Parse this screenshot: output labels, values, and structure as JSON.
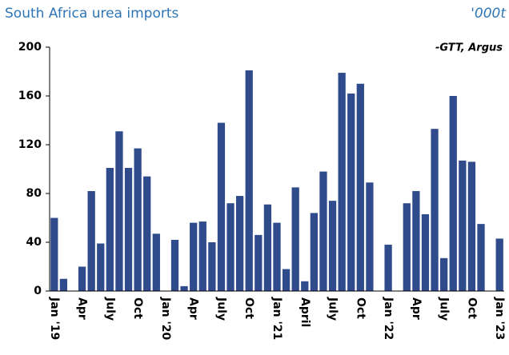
{
  "chart_data": {
    "type": "bar",
    "title": "South Africa urea imports",
    "unit": "'000t",
    "source": "-GTT, Argus",
    "categories": [
      "Jan '19",
      null,
      null,
      "Apr",
      null,
      null,
      "July",
      null,
      null,
      "Oct",
      null,
      null,
      "Jan '20",
      null,
      null,
      "Apr",
      null,
      null,
      "July",
      null,
      null,
      "Oct",
      null,
      null,
      "Jan '21",
      null,
      null,
      "April",
      null,
      null,
      "July",
      null,
      null,
      "Oct",
      null,
      null,
      "Jan '22",
      null,
      null,
      "Apr",
      null,
      null,
      "July",
      null,
      null,
      "Oct",
      null,
      null,
      "Jan '23"
    ],
    "values": [
      60,
      10,
      0,
      20,
      82,
      39,
      101,
      131,
      101,
      117,
      94,
      47,
      0,
      42,
      4,
      56,
      57,
      40,
      138,
      72,
      78,
      181,
      46,
      71,
      56,
      18,
      85,
      8,
      64,
      98,
      74,
      179,
      162,
      170,
      89,
      0,
      38,
      0,
      72,
      82,
      63,
      133,
      27,
      160,
      107,
      106,
      55,
      0,
      43
    ],
    "color": "#2f4b8c",
    "ylim": [
      0,
      200
    ],
    "yticks": [
      0,
      40,
      80,
      120,
      160,
      200
    ],
    "grid": false
  }
}
